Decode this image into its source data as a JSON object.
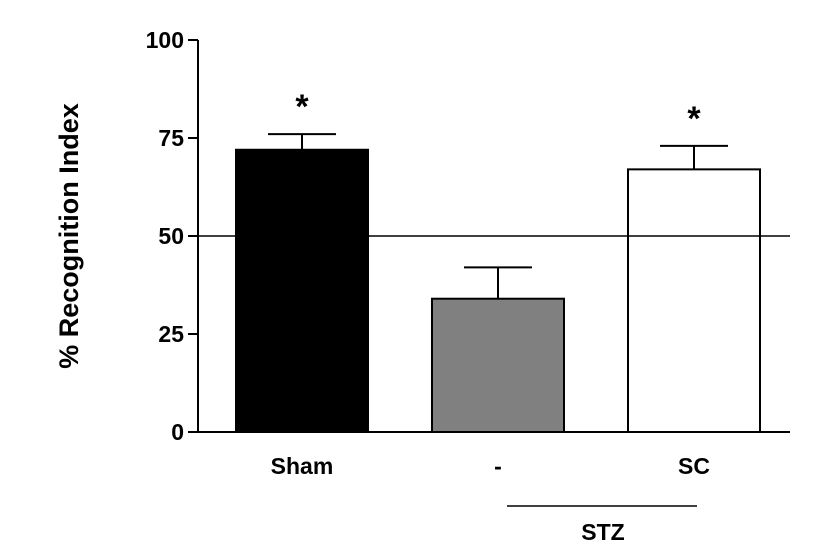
{
  "chart_data": {
    "type": "bar",
    "categories": [
      "Sham",
      "-",
      "SC"
    ],
    "values": [
      72,
      34,
      67
    ],
    "errors": [
      4,
      8,
      6
    ],
    "significance": [
      "*",
      "",
      "*"
    ],
    "bar_colors": [
      "#000000",
      "#808080",
      "#ffffff"
    ],
    "ylabel": "% Recognition Index",
    "ylim": [
      0,
      100
    ],
    "yticks": [
      0,
      25,
      50,
      75,
      100
    ],
    "reference_line": 50,
    "group_label": "STZ",
    "group_members": [
      "-",
      "SC"
    ],
    "grid": false
  }
}
